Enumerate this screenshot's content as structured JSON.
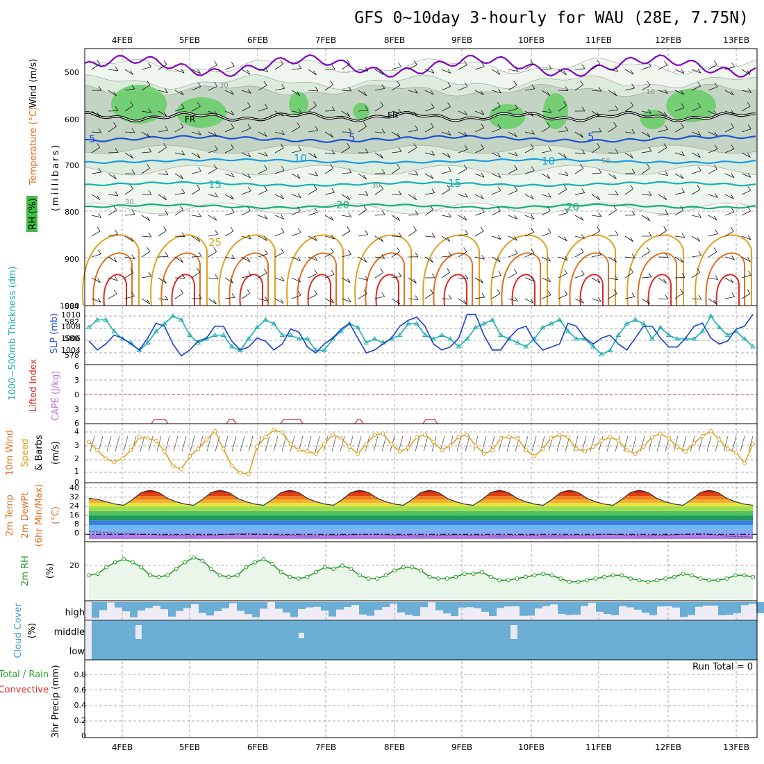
{
  "title": "GFS 0~10day 3-hourly for WAU (28E, 7.75N)",
  "dates": [
    "4FEB",
    "5FEB",
    "6FEB",
    "7FEB",
    "8FEB",
    "9FEB",
    "10FEB",
    "11FEB",
    "12FEB",
    "13FEB"
  ],
  "colors": {
    "purple": "#8000c0",
    "blue": "#1f4fd8",
    "lightblue": "#1a9be0",
    "teal": "#1ab0b0",
    "green": "#16b070",
    "orange": "#e0a020",
    "darkorange": "#e07020",
    "red": "#e02828",
    "rhgreen": "#30c030",
    "cloud": "#6aaed6",
    "sky": "#efecf5",
    "panelrh": "#eaf6ea"
  },
  "panels": {
    "upper": {
      "labels": {
        "wind": "Wind (m/s)",
        "temp": "Temperature (°C)",
        "rh": "RH (%)",
        "units": "(millibars)",
        "fr": "FR"
      },
      "yticks": [
        "500",
        "600",
        "700",
        "800",
        "900",
        "1000"
      ],
      "contour_labels": [
        "5",
        "5",
        "5",
        "10",
        "10",
        "15",
        "15",
        "20",
        "20",
        "25",
        "30",
        "30",
        "30",
        "50",
        "10"
      ]
    },
    "slp": {
      "labels": {
        "thick": "1000~500mb Thickness (dm)",
        "slp": "SLP (mb)"
      },
      "left_ticks": [
        "584",
        "582",
        "580",
        "578"
      ],
      "right_ticks": [
        "1010",
        "1008",
        "1006",
        "1004"
      ]
    },
    "li": {
      "labels": {
        "li": "Lifted Index",
        "cape": "CAPE (J/kg)"
      },
      "ticks": [
        "6",
        "3",
        "0",
        "3",
        "6"
      ]
    },
    "wind10": {
      "labels": {
        "a": "10m Wind",
        "b": "Speed",
        "c": "& Barbs",
        "units": "(m/s)"
      },
      "ticks": [
        "4",
        "3",
        "2",
        "1",
        "0"
      ]
    },
    "temp2m": {
      "labels": {
        "a": "2m Temp",
        "b": "2m DewPt",
        "c": "(6hr Min/Max)",
        "units": "(°C)"
      },
      "ticks": [
        "40",
        "32",
        "24",
        "16",
        "8",
        "0"
      ]
    },
    "rh2m": {
      "labels": {
        "a": "2m RH",
        "units": "(%)"
      },
      "ticks": [
        "20"
      ]
    },
    "cloud": {
      "labels": {
        "a": "Cloud Cover",
        "units": "(%)",
        "high": "high",
        "middle": "middle",
        "low": "low"
      }
    },
    "precip": {
      "labels": {
        "a": "Total / Rain",
        "b": "Convective",
        "c": "3hr Precip (mm)",
        "run": "Run Total = 0"
      },
      "ticks": [
        "0.8",
        "0.6",
        "0.4",
        "0.2",
        "0"
      ]
    }
  },
  "chart_data": [
    {
      "type": "line",
      "title": "SLP / 1000-500mb Thickness",
      "series": [
        {
          "name": "SLP (mb)",
          "values": [
            1005.5,
            1004,
            1005,
            1006.5,
            1006,
            1005,
            1004,
            1006,
            1008.5,
            1008,
            1005,
            1003,
            1004,
            1005.5,
            1006,
            1008,
            1008,
            1005.5,
            1004,
            1004.5,
            1006,
            1005.5,
            1004,
            1005,
            1007.5,
            1007,
            1004.5,
            1003.5,
            1005,
            1006,
            1007.5,
            1008.5,
            1006,
            1003.5,
            1004,
            1005,
            1006,
            1008,
            1009,
            1009.5,
            1008,
            1005,
            1004,
            1004.5,
            1006,
            1010,
            1010,
            1006.5,
            1004,
            1004,
            1006,
            1007.5,
            1008,
            1005.5,
            1004,
            1004.5,
            1005,
            1008.5,
            1008,
            1006,
            1005,
            1006,
            1006.5,
            1005,
            1004,
            1006,
            1008,
            1008,
            1006,
            1004.5,
            1004.5,
            1006,
            1008,
            1008.5,
            1006,
            1005,
            1005.5,
            1007.5,
            1008,
            1010
          ]
        },
        {
          "name": "Thickness (dm)",
          "values": [
            581.5,
            582.5,
            582.5,
            581,
            580,
            579.5,
            578.5,
            579.5,
            581,
            582,
            583,
            582.5,
            580.5,
            579.5,
            580,
            580.5,
            580.5,
            579,
            578.5,
            580,
            581.5,
            582.5,
            582,
            580.5,
            580.5,
            580,
            580,
            578.5,
            578.5,
            580,
            581,
            582,
            581.5,
            579.5,
            580,
            579.5,
            580,
            580.5,
            582,
            582,
            580.5,
            580,
            580.5,
            580,
            579,
            580,
            581.5,
            582,
            582.5,
            580.5,
            580,
            579.5,
            579,
            580,
            581.5,
            582,
            582.5,
            581,
            580,
            580,
            579,
            578,
            578.5,
            580.5,
            582,
            582.5,
            582,
            580,
            581.5,
            580.5,
            580,
            580,
            580,
            581,
            583,
            581.5,
            580.5,
            581,
            580,
            579
          ]
        }
      ],
      "ylim_slp": [
        1002,
        1011
      ],
      "ylim_thick": [
        577,
        584
      ]
    },
    {
      "type": "line",
      "title": "10m Wind Speed",
      "series": [
        {
          "name": "Speed (m/s)",
          "values": [
            3.2,
            2.5,
            1.8,
            1.5,
            1.8,
            2.5,
            3.6,
            3.5,
            3.3,
            2.4,
            1.2,
            0.9,
            2,
            2.6,
            3.4,
            4.1,
            2.6,
            1.2,
            0.6,
            0.5,
            2.8,
            3.6,
            4.2,
            4,
            3,
            2.5,
            2.4,
            2.2,
            3,
            3.8,
            3.5,
            2.8,
            2.2,
            3,
            3.8,
            3.9,
            3,
            2.4,
            2.7,
            3.6,
            3.8,
            3.2,
            2.5,
            2.9,
            3.6,
            3.8,
            2.9,
            2.2,
            2.5,
            3.5,
            3.6,
            3.5,
            2.5,
            2,
            2.6,
            3.5,
            3.8,
            3.6,
            2.6,
            2.4,
            2.8,
            3.3,
            3.6,
            3.3,
            2.5,
            2.2,
            2.8,
            3.6,
            3.9,
            3.5,
            2.8,
            2.4,
            3.1,
            3.7,
            4.1,
            3.4,
            2.6,
            2.3,
            1.4,
            3
          ]
        }
      ],
      "ylim": [
        0,
        4.5
      ]
    },
    {
      "type": "area",
      "title": "2m Temp",
      "series": [
        {
          "name": "Temp (°C)",
          "values": [
            31,
            30,
            28,
            26,
            25,
            30,
            36,
            38,
            36,
            31,
            28,
            26,
            25,
            30,
            36,
            38,
            36,
            31,
            28,
            26,
            25,
            30,
            36,
            38,
            36,
            31,
            28,
            26,
            25,
            30,
            36,
            38,
            36,
            31,
            28,
            26,
            25,
            30,
            36,
            38,
            36,
            31,
            28,
            26,
            25,
            30,
            36,
            38,
            36,
            31,
            28,
            26,
            25,
            30,
            36,
            38,
            36,
            31,
            28,
            26,
            25,
            30,
            36,
            38,
            36,
            31,
            28,
            26,
            25,
            30,
            36,
            38,
            36,
            31,
            28,
            26,
            25
          ]
        },
        {
          "name": "DewPt (°C)",
          "values": [
            2.5,
            2,
            1.5,
            1,
            1,
            0.5,
            0,
            0,
            -0.5,
            -1,
            -1,
            -1.5,
            -1.5,
            -1,
            -1,
            -0.5,
            0,
            0.5,
            0.5,
            0.5,
            0,
            -0.5,
            -1,
            -1,
            -1.5,
            -1.5,
            -1.5,
            -1,
            -1,
            -1,
            -0.5,
            0,
            0,
            0,
            -0.5,
            -1,
            -1,
            -1.5,
            -1.5,
            -1.5,
            -1,
            -1,
            -0.5,
            -0.5,
            -1,
            -1,
            -1.5,
            -1.5,
            -1.5,
            -1,
            -1,
            -1,
            -1.5,
            -1.5,
            -1.5,
            -1,
            -1,
            -1,
            -0.5,
            0,
            0,
            -0.5,
            -1,
            -1.5,
            -1.5,
            -1,
            -1,
            -0.5,
            0,
            0.5,
            1,
            0,
            -1,
            -1.5,
            -2,
            -2,
            -2.5
          ]
        }
      ],
      "ylim": [
        -4,
        42
      ]
    },
    {
      "type": "line",
      "title": "2m RH",
      "series": [
        {
          "name": "RH (%)",
          "values": [
            14,
            15,
            19,
            22,
            24,
            22,
            19,
            14,
            13,
            14,
            18,
            22,
            25,
            23,
            18,
            14,
            13,
            14,
            19,
            22,
            24,
            21,
            16,
            13,
            12,
            13,
            16,
            19,
            18,
            20,
            18,
            14,
            12,
            12,
            14,
            17,
            19,
            19,
            17,
            13,
            12,
            12,
            13,
            15,
            15,
            16,
            13,
            11,
            11,
            12,
            13,
            14,
            15,
            14,
            12,
            10,
            10,
            11,
            12,
            13,
            14,
            14,
            12,
            11,
            10,
            11,
            12,
            13,
            15,
            14,
            12,
            11,
            11,
            12,
            14,
            14,
            13
          ]
        }
      ],
      "ylim": [
        0,
        33
      ]
    },
    {
      "type": "bar",
      "title": "3hr Precip (mm)",
      "series": [
        {
          "name": "Total / Rain",
          "values": [
            0
          ]
        },
        {
          "name": "Convective",
          "values": [
            0
          ]
        }
      ],
      "ylim": [
        0,
        1
      ]
    }
  ]
}
